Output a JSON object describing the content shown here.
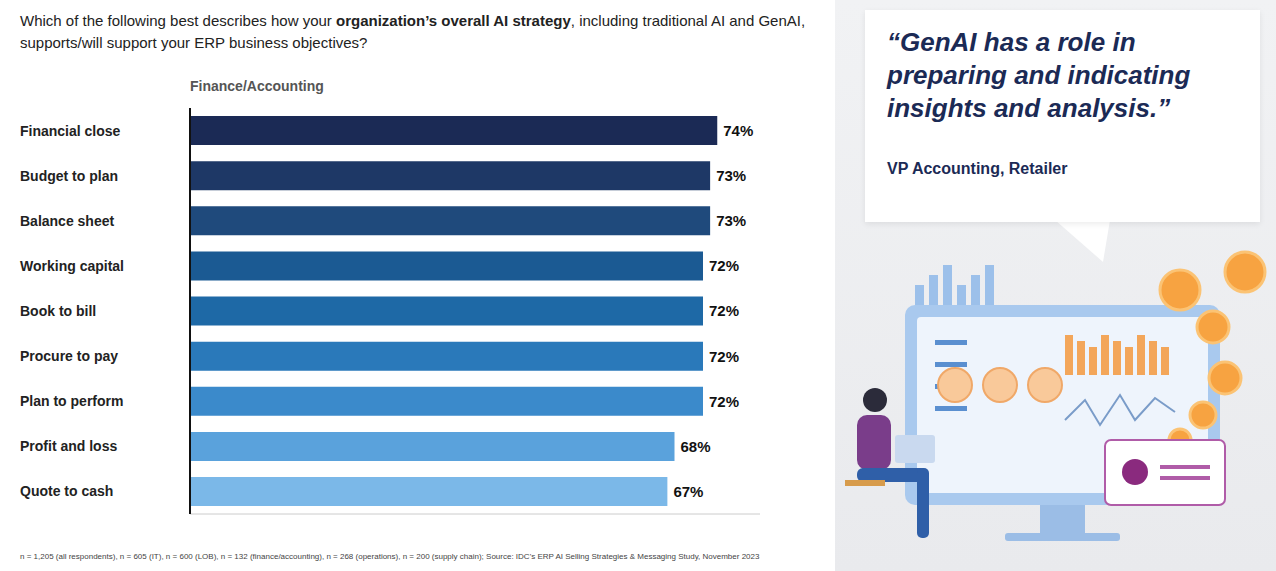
{
  "chart_data": {
    "type": "bar",
    "orientation": "horizontal",
    "title": "Which of the following best describes how your organization’s overall AI strategy, including traditional AI and GenAI, supports/will support your ERP business objectives?",
    "title_emphasis": "organization’s overall AI strategy",
    "subtitle": "Finance/Accounting",
    "categories": [
      "Financial close",
      "Budget to plan",
      "Balance sheet",
      "Working capital",
      "Book to bill",
      "Procure to pay",
      "Plan to perform",
      "Profit and loss",
      "Quote to cash"
    ],
    "values": [
      74,
      73,
      73,
      72,
      72,
      72,
      72,
      68,
      67
    ],
    "value_labels": [
      "74%",
      "73%",
      "73%",
      "72%",
      "72%",
      "72%",
      "72%",
      "68%",
      "67%"
    ],
    "colors": [
      "#1b2a55",
      "#1e3866",
      "#1f4a7c",
      "#1b5a93",
      "#1e69a6",
      "#2a79ba",
      "#3b8acb",
      "#5aa2dc",
      "#7bb8e8"
    ],
    "xlim": [
      0,
      80
    ],
    "tick_labels": "y",
    "data_labels": true,
    "grid": false,
    "annotations": [
      "“GenAI has a role in preparing and indicating insights and analysis.”",
      "VP Accounting, Retailer"
    ],
    "footnote": "n = 1,205 (all respondents), n = 605 (IT), n = 600 (LOB), n = 132 (finance/accounting), n = 268 (operations), n = 200 (supply chain); Source: IDC's ERP AI Selling Strategies & Messaging Study, November 2023"
  }
}
